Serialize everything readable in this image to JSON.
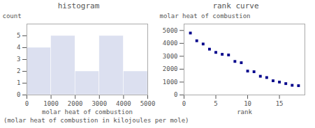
{
  "chart_data": [
    {
      "type": "histogram",
      "title": "histogram",
      "x_label": "molar heat of combustion",
      "y_label": "count",
      "bins": [
        0,
        1000,
        2000,
        3000,
        4000,
        5000
      ],
      "values": [
        4,
        5,
        2,
        5,
        2
      ],
      "color": "#dce0f0",
      "xlim": [
        0,
        5000
      ],
      "xticks": [
        0,
        1000,
        2000,
        3000,
        4000,
        5000
      ],
      "ylim": [
        0,
        6
      ],
      "yticks": [
        0,
        1,
        2,
        3,
        4,
        5
      ]
    },
    {
      "type": "scatter",
      "title": "rank curve",
      "x_label": "rank",
      "y_label": "molar heat of combustion",
      "x": [
        1,
        2,
        3,
        4,
        5,
        6,
        7,
        8,
        9,
        10,
        11,
        12,
        13,
        14,
        15,
        16,
        17,
        18
      ],
      "values": [
        4800,
        4200,
        3950,
        3550,
        3300,
        3150,
        3100,
        2600,
        2500,
        1850,
        1800,
        1450,
        1350,
        1100,
        1000,
        880,
        750,
        720
      ],
      "color": "#00008b",
      "marker": "square",
      "xlim": [
        0,
        19
      ],
      "xticks": [
        0,
        5,
        10,
        15
      ],
      "ylim": [
        0,
        5500
      ],
      "yticks": [
        0,
        1000,
        2000,
        3000,
        4000,
        5000
      ]
    }
  ],
  "caption": "(molar heat of combustion in kilojoules per mole)"
}
